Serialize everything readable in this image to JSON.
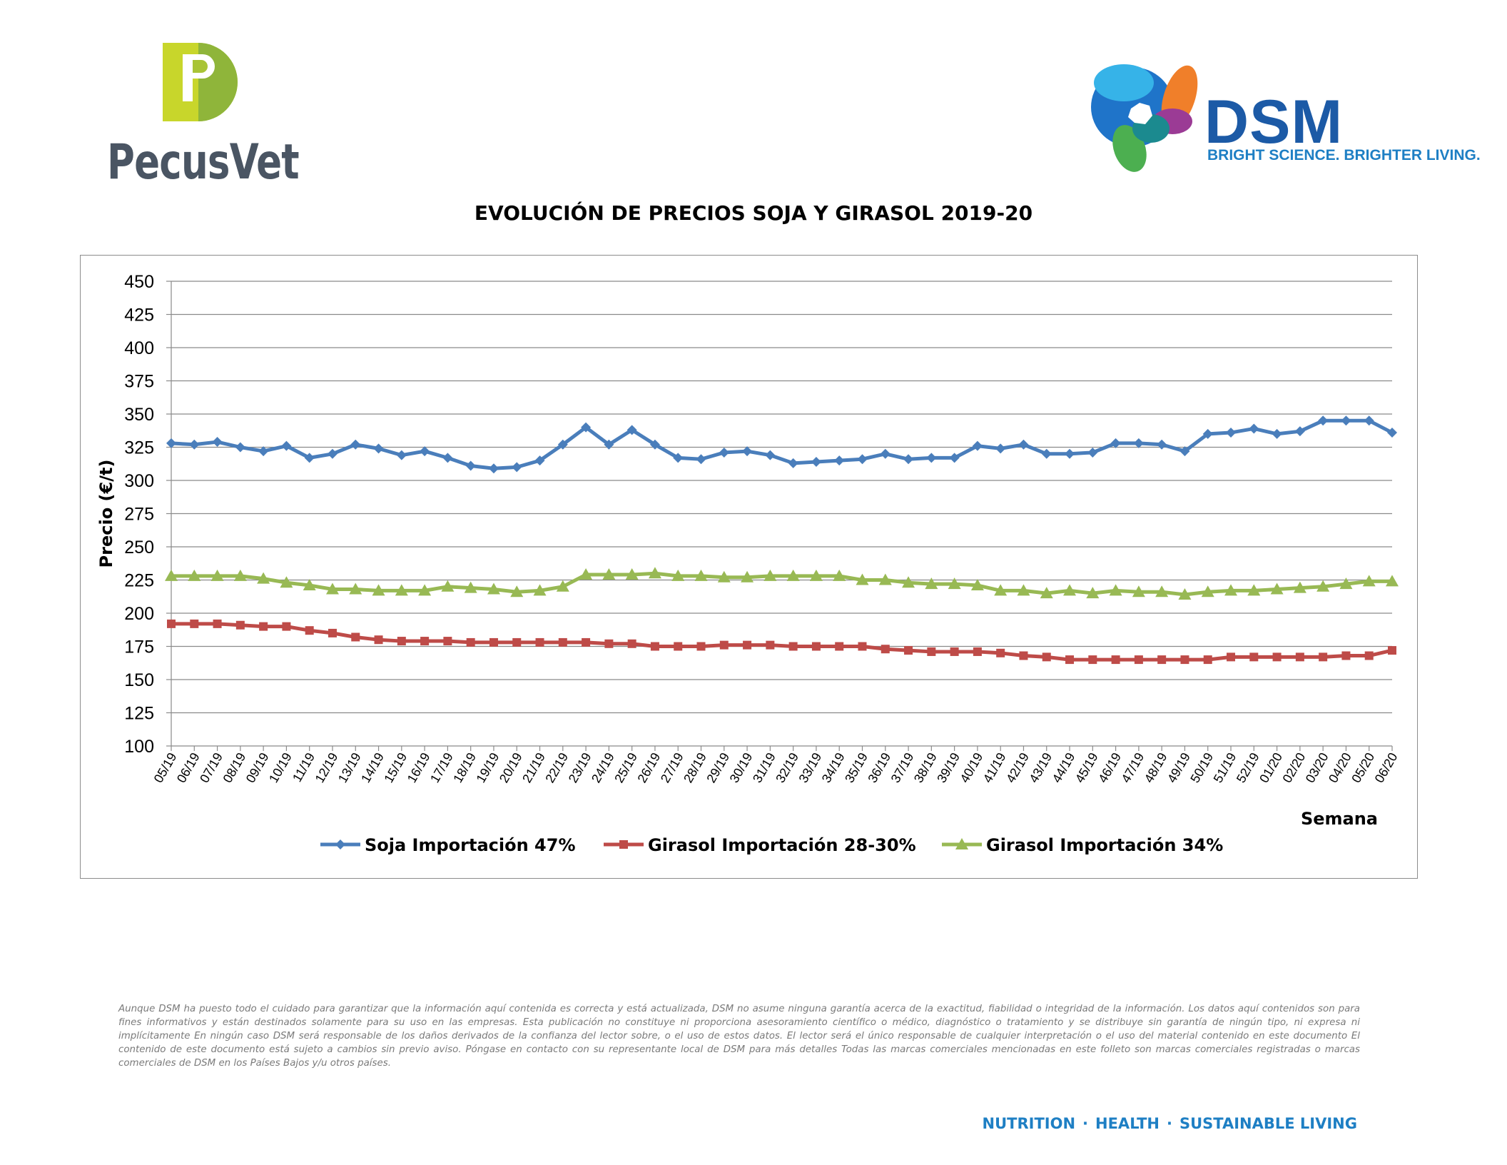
{
  "logos": {
    "pecusvet": {
      "text": "PecusVet",
      "letter": "P",
      "colors": {
        "green": "#a3c83a",
        "gray": "#4a5563"
      }
    },
    "dsm": {
      "word": "DSM",
      "tagline": "BRIGHT SCIENCE. BRIGHTER LIVING.",
      "colors": {
        "blue": "#1c5aa6",
        "tagline": "#1e7fc4"
      }
    }
  },
  "chart_data": {
    "type": "line",
    "title": "EVOLUCIÓN DE PRECIOS SOJA Y GIRASOL 2019-20",
    "ylabel": "Precio (€/t)",
    "xlabel": "Semana",
    "ylim": [
      100,
      450
    ],
    "yticks": [
      100,
      125,
      150,
      175,
      200,
      225,
      250,
      275,
      300,
      325,
      350,
      375,
      400,
      425,
      450
    ],
    "grid": true,
    "legend": "bottom",
    "categories": [
      "05/19",
      "06/19",
      "07/19",
      "08/19",
      "09/19",
      "10/19",
      "11/19",
      "12/19",
      "13/19",
      "14/19",
      "15/19",
      "16/19",
      "17/19",
      "18/19",
      "19/19",
      "20/19",
      "21/19",
      "22/19",
      "23/19",
      "24/19",
      "25/19",
      "26/19",
      "27/19",
      "28/19",
      "29/19",
      "30/19",
      "31/19",
      "32/19",
      "33/19",
      "34/19",
      "35/19",
      "36/19",
      "37/19",
      "38/19",
      "39/19",
      "40/19",
      "41/19",
      "42/19",
      "43/19",
      "44/19",
      "45/19",
      "46/19",
      "47/19",
      "48/19",
      "49/19",
      "50/19",
      "51/19",
      "52/19",
      "01/20",
      "02/20",
      "03/20",
      "04/20",
      "05/20",
      "06/20"
    ],
    "series": [
      {
        "name": "Soja Importación 47%",
        "color": "#4a7ebb",
        "marker": "diamond",
        "values": [
          328,
          327,
          329,
          325,
          322,
          326,
          317,
          320,
          327,
          324,
          319,
          322,
          317,
          311,
          309,
          310,
          315,
          327,
          340,
          327,
          338,
          327,
          317,
          316,
          321,
          322,
          319,
          313,
          314,
          315,
          316,
          320,
          316,
          317,
          317,
          326,
          324,
          327,
          320,
          320,
          321,
          328,
          328,
          327,
          322,
          335,
          336,
          339,
          335,
          337,
          345,
          345,
          345,
          336
        ]
      },
      {
        "name": "Girasol Importación 28-30%",
        "color": "#be4b48",
        "marker": "square",
        "values": [
          192,
          192,
          192,
          191,
          190,
          190,
          187,
          185,
          182,
          180,
          179,
          179,
          179,
          178,
          178,
          178,
          178,
          178,
          178,
          177,
          177,
          175,
          175,
          175,
          176,
          176,
          176,
          175,
          175,
          175,
          175,
          173,
          172,
          171,
          171,
          171,
          170,
          168,
          167,
          165,
          165,
          165,
          165,
          165,
          165,
          165,
          167,
          167,
          167,
          167,
          167,
          168,
          168,
          172
        ]
      },
      {
        "name": "Girasol Importación 34%",
        "color": "#98b954",
        "marker": "triangle",
        "values": [
          228,
          228,
          228,
          228,
          226,
          223,
          221,
          218,
          218,
          217,
          217,
          217,
          220,
          219,
          218,
          216,
          217,
          220,
          229,
          229,
          229,
          230,
          228,
          228,
          227,
          227,
          228,
          228,
          228,
          228,
          225,
          225,
          223,
          222,
          222,
          221,
          217,
          217,
          215,
          217,
          215,
          217,
          216,
          216,
          214,
          216,
          217,
          217,
          218,
          219,
          220,
          222,
          224,
          224
        ]
      }
    ]
  },
  "disclaimer": "Aunque DSM ha puesto todo el cuidado para garantizar que la información aquí contenida es correcta y está actualizada, DSM no asume ninguna garantía acerca de la exactitud, fiabilidad o integridad de la información. Los datos aquí contenidos son para fines informativos y están destinados solamente para su uso en las empresas. Esta publicación no constituye ni proporciona asesoramiento científico o médico, diagnóstico o tratamiento y se distribuye sin garantía de ningún tipo, ni expresa ni implícitamente En ningún caso DSM será responsable de los daños derivados de la confianza del lector sobre, o el uso de estos datos. El lector será el único responsable de cualquier interpretación o el uso del material contenido en este documento El contenido de este documento está sujeto a cambios sin previo aviso. Póngase en contacto con su representante local de DSM para más detalles Todas las marcas comerciales mencionadas en este folleto son marcas comerciales registradas o marcas comerciales de DSM en los Países Bajos y/u otros países.",
  "footer": {
    "items": [
      "NUTRITION",
      "HEALTH",
      "SUSTAINABLE LIVING"
    ],
    "separator": "·"
  }
}
